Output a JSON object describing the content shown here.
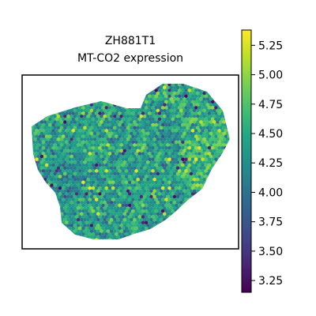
{
  "chart_data": {
    "type": "heatmap",
    "title_lines": [
      "ZH881T1",
      "MT-CO2 expression"
    ],
    "colormap": "viridis",
    "colorbar": {
      "vmin": 3.15,
      "vmax": 5.38,
      "ticks": [
        3.25,
        3.5,
        3.75,
        4.0,
        4.25,
        4.5,
        4.75,
        5.0,
        5.25
      ],
      "tick_labels": [
        "3.25",
        "3.50",
        "3.75",
        "4.00",
        "4.25",
        "4.50",
        "4.75",
        "5.00",
        "5.25"
      ]
    },
    "spots": {
      "description_value_range": [
        3.2,
        5.35
      ],
      "typical_value": 4.4
    }
  }
}
